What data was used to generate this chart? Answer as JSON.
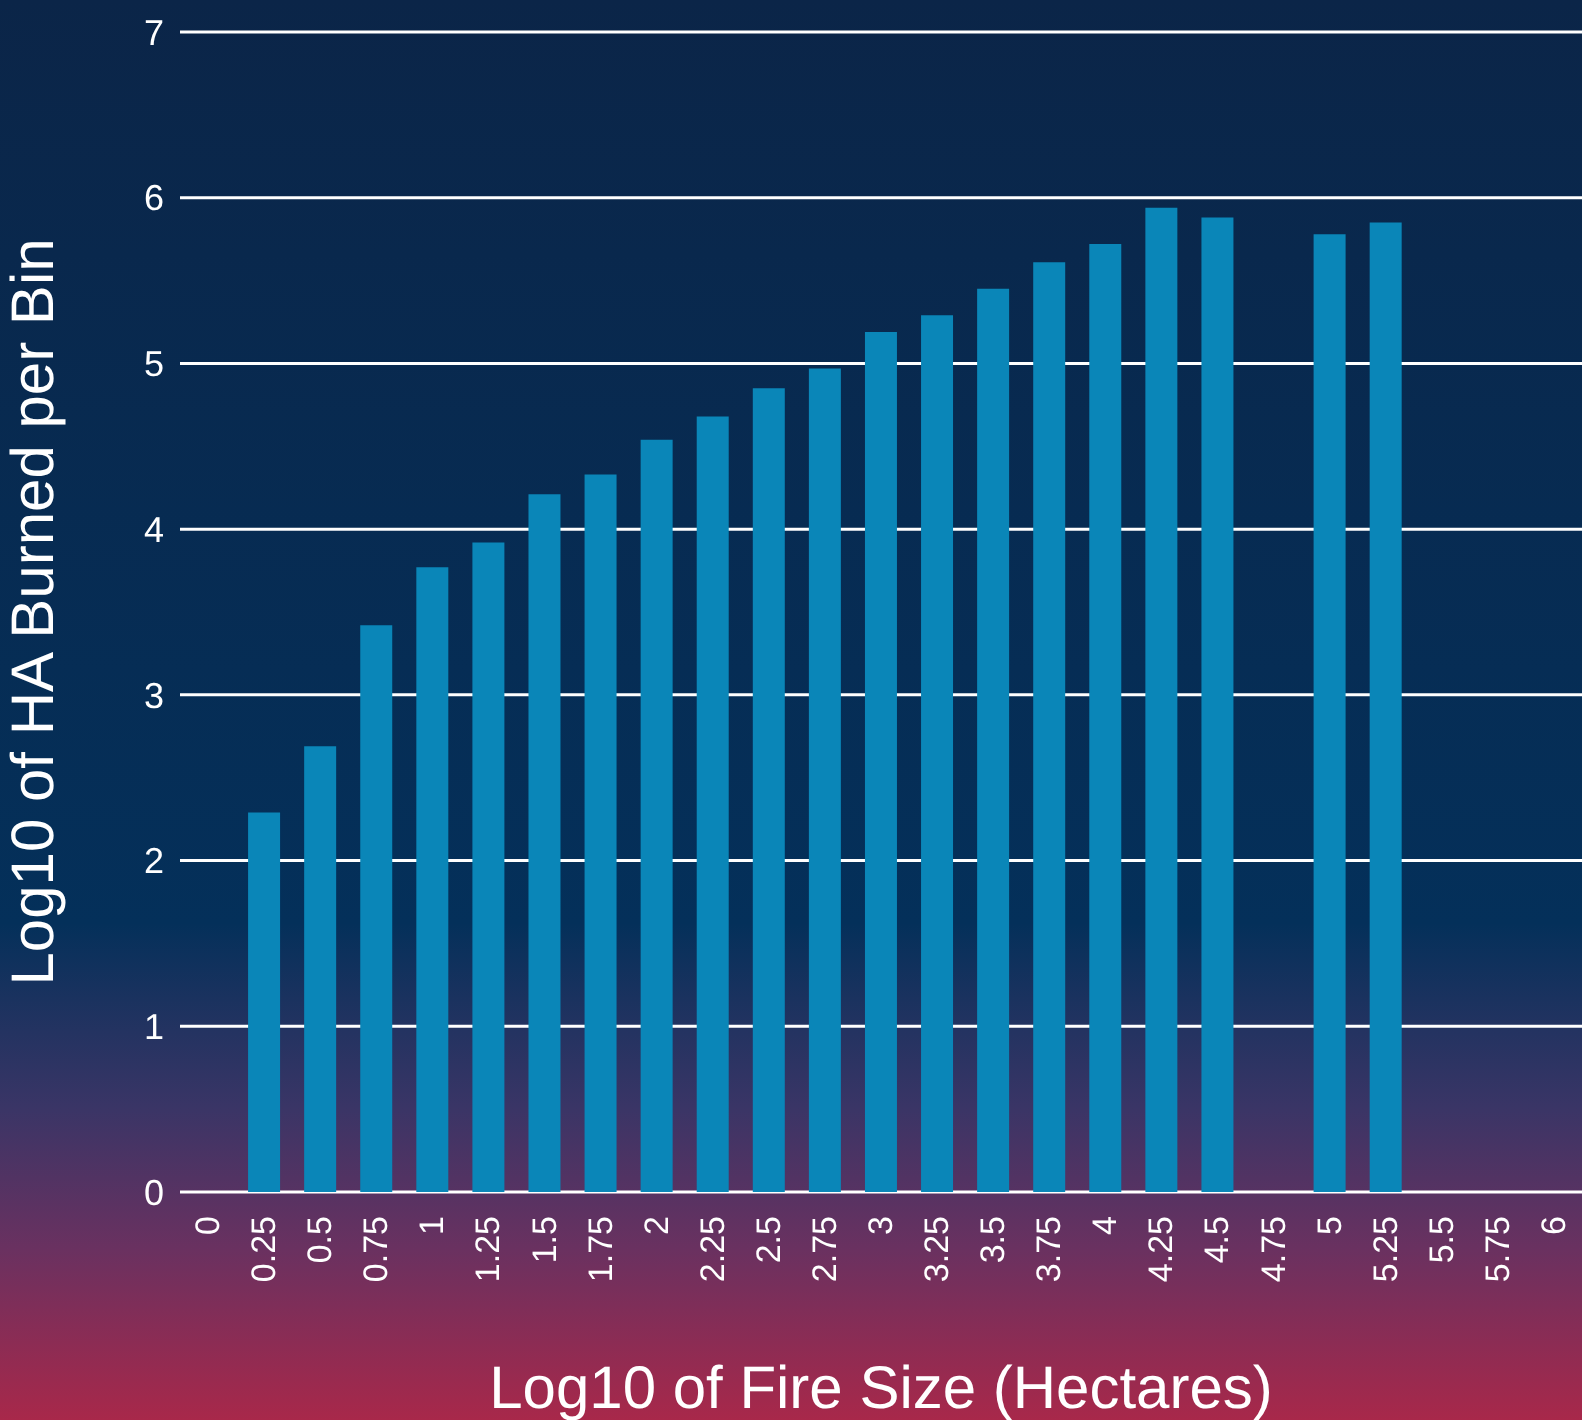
{
  "chart_data": {
    "type": "bar",
    "xlabel": "Log10 of Fire Size (Hectares)",
    "ylabel": "Log10 of HA Burned per Bin",
    "categories": [
      "0",
      "0.25",
      "0.5",
      "0.75",
      "1",
      "1.25",
      "1.5",
      "1.75",
      "2",
      "2.25",
      "2.5",
      "2.75",
      "3",
      "3.25",
      "3.5",
      "3.75",
      "4",
      "4.25",
      "4.5",
      "4.75",
      "5",
      "5.25",
      "5.5",
      "5.75",
      "6"
    ],
    "values": [
      null,
      2.29,
      2.69,
      3.42,
      3.77,
      3.92,
      4.21,
      4.33,
      4.54,
      4.68,
      4.85,
      4.97,
      5.19,
      5.29,
      5.45,
      5.61,
      5.72,
      5.94,
      5.88,
      null,
      5.78,
      5.85,
      null,
      null,
      null
    ],
    "color": "#0a86b8",
    "ylim": [
      0,
      7
    ],
    "yticks": [
      0,
      1,
      2,
      3,
      4,
      5,
      6,
      7
    ],
    "grid": "y"
  }
}
